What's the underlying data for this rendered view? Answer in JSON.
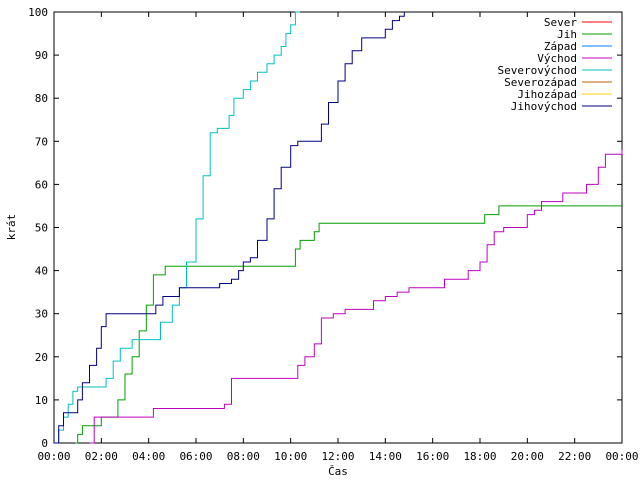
{
  "chart_data": {
    "type": "line",
    "title": "",
    "xlabel": "Čas",
    "ylabel": "krát",
    "xlim": [
      0,
      24
    ],
    "ylim": [
      0,
      100
    ],
    "x_ticks": [
      {
        "value": 0,
        "label": "00:00"
      },
      {
        "value": 2,
        "label": "02:00"
      },
      {
        "value": 4,
        "label": "04:00"
      },
      {
        "value": 6,
        "label": "06:00"
      },
      {
        "value": 8,
        "label": "08:00"
      },
      {
        "value": 10,
        "label": "10:00"
      },
      {
        "value": 12,
        "label": "12:00"
      },
      {
        "value": 14,
        "label": "14:00"
      },
      {
        "value": 16,
        "label": "16:00"
      },
      {
        "value": 18,
        "label": "18:00"
      },
      {
        "value": 20,
        "label": "20:00"
      },
      {
        "value": 22,
        "label": "22:00"
      },
      {
        "value": 24,
        "label": "00:00"
      }
    ],
    "y_ticks": [
      0,
      10,
      20,
      30,
      40,
      50,
      60,
      70,
      80,
      90,
      100
    ],
    "grid": false,
    "legend_position": "top-right",
    "series": [
      {
        "name": "Sever",
        "color": "#ff0000",
        "x": [],
        "y": []
      },
      {
        "name": "Jih",
        "color": "#00a000",
        "x": [
          0.9,
          1.0,
          1.2,
          1.5,
          2.0,
          2.4,
          2.7,
          3.0,
          3.3,
          3.6,
          3.9,
          4.2,
          4.5,
          4.7,
          6.0,
          8.0,
          10.0,
          10.2,
          10.4,
          10.7,
          11.0,
          11.2,
          12.0,
          14.0,
          16.0,
          18.0,
          18.2,
          18.6,
          18.8,
          20.0,
          22.0,
          24.0
        ],
        "y": [
          0,
          2,
          4,
          4,
          6,
          6,
          10,
          16,
          20,
          26,
          32,
          39,
          39,
          41,
          41,
          41,
          41,
          45,
          47,
          47,
          49,
          51,
          51,
          51,
          51,
          51,
          53,
          53,
          55,
          55,
          55,
          55
        ]
      },
      {
        "name": "Západ",
        "color": "#0080ff",
        "x": [],
        "y": []
      },
      {
        "name": "Východ",
        "color": "#c000c0",
        "x": [
          1.5,
          1.7,
          2.0,
          3.0,
          4.0,
          4.2,
          5.0,
          6.0,
          7.0,
          7.2,
          7.5,
          8.0,
          9.0,
          10.0,
          10.3,
          10.6,
          11.0,
          11.3,
          11.8,
          12.0,
          12.3,
          13.0,
          13.5,
          14.0,
          14.5,
          15.0,
          15.5,
          16.0,
          16.5,
          17.0,
          17.5,
          18.0,
          18.3,
          18.6,
          19.0,
          20.0,
          20.3,
          20.6,
          21.0,
          21.5,
          22.0,
          22.5,
          23.0,
          23.3,
          24.0
        ],
        "y": [
          0,
          6,
          6,
          6,
          6,
          8,
          8,
          8,
          8,
          9,
          15,
          15,
          15,
          15,
          18,
          20,
          23,
          29,
          30,
          30,
          31,
          31,
          33,
          34,
          35,
          36,
          36,
          36,
          38,
          38,
          40,
          42,
          46,
          49,
          50,
          53,
          54,
          56,
          56,
          58,
          58,
          60,
          64,
          67,
          68
        ]
      },
      {
        "name": "Severovýchod",
        "color": "#00c0c0",
        "x": [
          0.0,
          0.2,
          0.4,
          0.6,
          0.8,
          1.0,
          1.5,
          2.0,
          2.2,
          2.5,
          2.8,
          3.0,
          3.3,
          3.6,
          4.0,
          4.5,
          5.0,
          5.3,
          5.6,
          6.0,
          6.3,
          6.6,
          6.9,
          7.2,
          7.4,
          7.6,
          8.0,
          8.3,
          8.6,
          9.0,
          9.3,
          9.6,
          9.8,
          10.0,
          10.2,
          10.4
        ],
        "y": [
          0,
          3,
          6,
          9,
          12,
          13,
          13,
          13,
          15,
          19,
          22,
          22,
          24,
          24,
          24,
          28,
          32,
          36,
          42,
          52,
          62,
          72,
          73,
          73,
          76,
          80,
          82,
          84,
          86,
          88,
          90,
          92,
          95,
          97,
          100,
          100
        ]
      },
      {
        "name": "Severozápad",
        "color": "#c06000",
        "x": [],
        "y": []
      },
      {
        "name": "Jihozápad",
        "color": "#ffd000",
        "x": [],
        "y": []
      },
      {
        "name": "Jihovýchod",
        "color": "#000080",
        "x": [
          0.0,
          0.2,
          0.4,
          0.7,
          1.0,
          1.2,
          1.5,
          1.8,
          2.0,
          2.2,
          3.0,
          4.0,
          4.3,
          4.6,
          5.0,
          5.3,
          6.0,
          6.5,
          7.0,
          7.5,
          7.8,
          8.0,
          8.3,
          8.6,
          9.0,
          9.3,
          9.6,
          10.0,
          10.3,
          10.6,
          11.0,
          11.3,
          11.6,
          12.0,
          12.3,
          12.6,
          13.0,
          13.3,
          13.6,
          14.0,
          14.3,
          14.6,
          14.8
        ],
        "y": [
          0,
          4,
          7,
          7,
          10,
          14,
          18,
          22,
          27,
          30,
          30,
          30,
          32,
          34,
          34,
          36,
          36,
          36,
          37,
          38,
          40,
          42,
          43,
          47,
          52,
          59,
          64,
          69,
          70,
          70,
          70,
          74,
          79,
          84,
          88,
          91,
          94,
          94,
          94,
          96,
          98,
          99,
          100
        ]
      }
    ]
  }
}
